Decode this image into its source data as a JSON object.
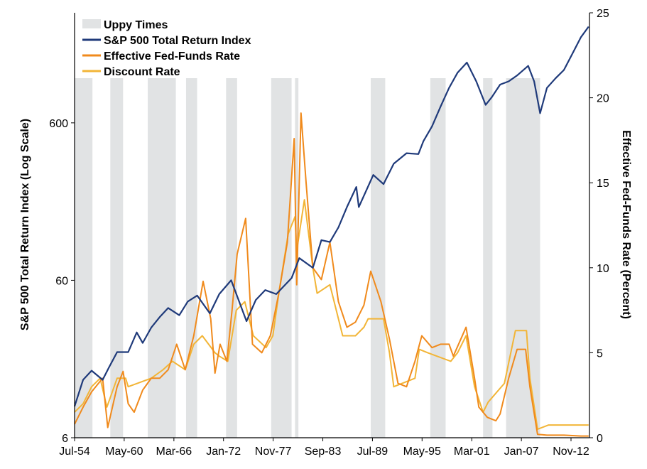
{
  "chart_data": {
    "type": "line",
    "x_axis": {
      "range": [
        1954.5,
        2015.0
      ],
      "ticks": [
        {
          "label": "Jul-54",
          "year": 1954.5
        },
        {
          "label": "May-60",
          "year": 1960.33
        },
        {
          "label": "Mar-66",
          "year": 1966.17
        },
        {
          "label": "Jan-72",
          "year": 1972.0
        },
        {
          "label": "Nov-77",
          "year": 1977.83
        },
        {
          "label": "Sep-83",
          "year": 1983.67
        },
        {
          "label": "Jul-89",
          "year": 1989.5
        },
        {
          "label": "May-95",
          "year": 1995.33
        },
        {
          "label": "Mar-01",
          "year": 2001.17
        },
        {
          "label": "Jan-07",
          "year": 2007.0
        },
        {
          "label": "Nov-12",
          "year": 2012.83
        }
      ]
    },
    "y_left": {
      "label": "S&P 500 Total Return Index (Log Scale)",
      "scale": "log",
      "range": [
        6,
        3000
      ],
      "tick_labels": [
        "6",
        "60",
        "600"
      ],
      "tick_values": [
        6,
        60,
        600
      ]
    },
    "y_right": {
      "label": "Effective Fed-Funds Rate (Percent)",
      "range": [
        0,
        25
      ],
      "tick_values": [
        0,
        5,
        10,
        15,
        20,
        25
      ],
      "tick_labels": [
        "0",
        "5",
        "10",
        "15",
        "20",
        "25"
      ]
    },
    "legend": {
      "placement": "top-left",
      "entries": [
        {
          "label": "Uppy Times",
          "kind": "band",
          "color": "#e1e3e4"
        },
        {
          "label": "S&P 500 Total Return Index",
          "kind": "line",
          "color": "#1f3a7a"
        },
        {
          "label": "Effective Fed-Funds Rate",
          "kind": "line",
          "color": "#f08a1c"
        },
        {
          "label": "Discount Rate",
          "kind": "line",
          "color": "#f2b537"
        }
      ]
    },
    "shaded_periods": [
      [
        1954.5,
        1956.6
      ],
      [
        1958.7,
        1960.2
      ],
      [
        1963.1,
        1966.4
      ],
      [
        1967.6,
        1968.9
      ],
      [
        1972.3,
        1973.6
      ],
      [
        1977.6,
        1980.0
      ],
      [
        1980.4,
        1980.8
      ],
      [
        1989.3,
        1991.0
      ],
      [
        1996.3,
        1998.1
      ],
      [
        2002.5,
        2003.6
      ],
      [
        2005.2,
        2009.2
      ]
    ],
    "series": [
      {
        "name": "S&P 500 Total Return Index",
        "axis": "left",
        "color": "#1f3a7a",
        "points": [
          [
            1954.5,
            9.5
          ],
          [
            1955.5,
            14
          ],
          [
            1956.5,
            16
          ],
          [
            1957.8,
            14
          ],
          [
            1958.6,
            17
          ],
          [
            1959.5,
            21
          ],
          [
            1960.8,
            21
          ],
          [
            1961.8,
            28
          ],
          [
            1962.5,
            24
          ],
          [
            1963.5,
            30
          ],
          [
            1964.5,
            35
          ],
          [
            1965.5,
            40
          ],
          [
            1966.8,
            36
          ],
          [
            1967.8,
            44
          ],
          [
            1968.9,
            48
          ],
          [
            1970.4,
            37
          ],
          [
            1971.5,
            49
          ],
          [
            1972.9,
            60
          ],
          [
            1974.7,
            33
          ],
          [
            1975.8,
            45
          ],
          [
            1976.9,
            52
          ],
          [
            1978.2,
            49
          ],
          [
            1980.0,
            62
          ],
          [
            1980.9,
            83
          ],
          [
            1982.5,
            72
          ],
          [
            1983.5,
            108
          ],
          [
            1984.5,
            105
          ],
          [
            1985.5,
            130
          ],
          [
            1986.5,
            175
          ],
          [
            1987.6,
            235
          ],
          [
            1987.9,
            175
          ],
          [
            1989.6,
            280
          ],
          [
            1990.8,
            245
          ],
          [
            1992.0,
            330
          ],
          [
            1993.5,
            385
          ],
          [
            1994.9,
            380
          ],
          [
            1995.5,
            460
          ],
          [
            1996.5,
            570
          ],
          [
            1997.5,
            760
          ],
          [
            1998.5,
            1000
          ],
          [
            1999.5,
            1250
          ],
          [
            2000.6,
            1450
          ],
          [
            2001.7,
            1100
          ],
          [
            2002.8,
            780
          ],
          [
            2003.5,
            870
          ],
          [
            2004.5,
            1050
          ],
          [
            2005.5,
            1100
          ],
          [
            2006.5,
            1200
          ],
          [
            2007.8,
            1380
          ],
          [
            2008.5,
            1100
          ],
          [
            2009.2,
            690
          ],
          [
            2010.0,
            1000
          ],
          [
            2011.0,
            1150
          ],
          [
            2012.0,
            1300
          ],
          [
            2013.0,
            1650
          ],
          [
            2014.0,
            2100
          ],
          [
            2014.9,
            2450
          ]
        ]
      },
      {
        "name": "Effective Fed-Funds Rate",
        "axis": "right",
        "color": "#f08a1c",
        "points": [
          [
            1954.5,
            0.8
          ],
          [
            1955.5,
            1.8
          ],
          [
            1956.5,
            2.7
          ],
          [
            1957.8,
            3.5
          ],
          [
            1958.4,
            0.6
          ],
          [
            1959.5,
            3.0
          ],
          [
            1960.2,
            3.9
          ],
          [
            1960.8,
            2.0
          ],
          [
            1961.5,
            1.5
          ],
          [
            1962.5,
            2.8
          ],
          [
            1963.5,
            3.5
          ],
          [
            1964.5,
            3.5
          ],
          [
            1965.5,
            4.0
          ],
          [
            1966.5,
            5.5
          ],
          [
            1967.5,
            4.0
          ],
          [
            1968.5,
            6.0
          ],
          [
            1969.6,
            9.2
          ],
          [
            1970.5,
            7.0
          ],
          [
            1971.0,
            3.8
          ],
          [
            1971.6,
            5.5
          ],
          [
            1972.4,
            4.5
          ],
          [
            1973.0,
            7.5
          ],
          [
            1973.6,
            10.8
          ],
          [
            1974.6,
            12.9
          ],
          [
            1975.4,
            5.5
          ],
          [
            1976.5,
            5.0
          ],
          [
            1977.5,
            6.0
          ],
          [
            1978.5,
            8.5
          ],
          [
            1979.5,
            11.5
          ],
          [
            1980.3,
            17.6
          ],
          [
            1980.6,
            9.0
          ],
          [
            1981.1,
            19.1
          ],
          [
            1981.7,
            15.0
          ],
          [
            1982.5,
            10.0
          ],
          [
            1983.5,
            9.3
          ],
          [
            1984.5,
            11.5
          ],
          [
            1985.5,
            8.0
          ],
          [
            1986.5,
            6.5
          ],
          [
            1987.5,
            6.8
          ],
          [
            1988.5,
            7.8
          ],
          [
            1989.3,
            9.8
          ],
          [
            1990.5,
            8.0
          ],
          [
            1991.5,
            5.8
          ],
          [
            1992.5,
            3.2
          ],
          [
            1993.5,
            3.0
          ],
          [
            1994.5,
            4.5
          ],
          [
            1995.3,
            6.0
          ],
          [
            1996.5,
            5.3
          ],
          [
            1997.5,
            5.5
          ],
          [
            1998.5,
            5.5
          ],
          [
            1999.0,
            4.8
          ],
          [
            2000.5,
            6.5
          ],
          [
            2001.5,
            3.5
          ],
          [
            2002.0,
            1.8
          ],
          [
            2003.0,
            1.2
          ],
          [
            2004.0,
            1.0
          ],
          [
            2004.5,
            1.4
          ],
          [
            2005.5,
            3.5
          ],
          [
            2006.5,
            5.2
          ],
          [
            2007.5,
            5.2
          ],
          [
            2008.0,
            3.0
          ],
          [
            2008.9,
            0.2
          ],
          [
            2010.0,
            0.15
          ],
          [
            2012.0,
            0.15
          ],
          [
            2014.0,
            0.1
          ],
          [
            2014.9,
            0.1
          ]
        ]
      },
      {
        "name": "Discount Rate",
        "axis": "right",
        "color": "#f2b537",
        "points": [
          [
            1954.5,
            1.5
          ],
          [
            1955.5,
            2.0
          ],
          [
            1956.5,
            3.0
          ],
          [
            1957.5,
            3.5
          ],
          [
            1958.3,
            1.8
          ],
          [
            1959.5,
            3.5
          ],
          [
            1960.5,
            3.5
          ],
          [
            1960.8,
            3.0
          ],
          [
            1963.5,
            3.5
          ],
          [
            1964.9,
            4.0
          ],
          [
            1966.0,
            4.5
          ],
          [
            1967.5,
            4.0
          ],
          [
            1968.5,
            5.5
          ],
          [
            1969.5,
            6.0
          ],
          [
            1971.0,
            5.0
          ],
          [
            1971.5,
            4.8
          ],
          [
            1972.5,
            4.5
          ],
          [
            1973.5,
            7.5
          ],
          [
            1974.5,
            8.0
          ],
          [
            1975.5,
            6.0
          ],
          [
            1977.0,
            5.3
          ],
          [
            1977.8,
            6.0
          ],
          [
            1978.5,
            8.5
          ],
          [
            1979.6,
            12.0
          ],
          [
            1980.4,
            13.0
          ],
          [
            1980.6,
            11.0
          ],
          [
            1981.5,
            14.0
          ],
          [
            1982.0,
            12.0
          ],
          [
            1982.5,
            10.0
          ],
          [
            1983.0,
            8.5
          ],
          [
            1984.5,
            9.0
          ],
          [
            1985.0,
            8.0
          ],
          [
            1986.0,
            6.0
          ],
          [
            1987.5,
            6.0
          ],
          [
            1988.5,
            6.5
          ],
          [
            1989.0,
            7.0
          ],
          [
            1990.8,
            7.0
          ],
          [
            1991.5,
            5.0
          ],
          [
            1992.0,
            3.0
          ],
          [
            1994.5,
            3.5
          ],
          [
            1995.0,
            5.2
          ],
          [
            1996.0,
            5.0
          ],
          [
            1998.7,
            4.5
          ],
          [
            1999.5,
            5.0
          ],
          [
            2000.5,
            6.0
          ],
          [
            2001.5,
            3.0
          ],
          [
            2002.5,
            1.5
          ],
          [
            2003.1,
            2.1
          ],
          [
            2005.0,
            3.2
          ],
          [
            2006.3,
            6.3
          ],
          [
            2007.6,
            6.3
          ],
          [
            2008.0,
            3.5
          ],
          [
            2008.9,
            0.5
          ],
          [
            2010.2,
            0.75
          ],
          [
            2014.9,
            0.75
          ]
        ]
      }
    ]
  }
}
